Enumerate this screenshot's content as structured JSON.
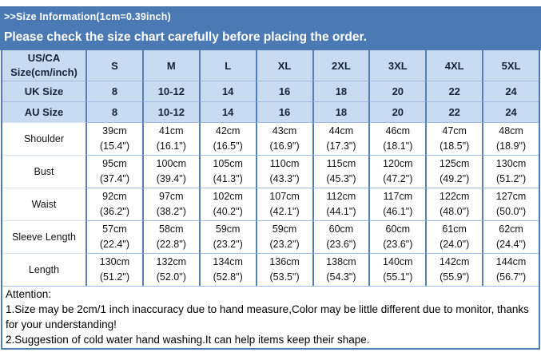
{
  "banner": {
    "title": ">>Size Information(1cm=0.39inch)",
    "subtitle": "Please check the size chart carefully before placing the order."
  },
  "colors": {
    "banner_bg": "#4a79b4",
    "header_cell_bg": "#c9dbf0",
    "label_cell_bg": "#6ba1d9",
    "grid_strong": "#567fb6",
    "grid_light": "#9fbcdf",
    "header_text": "#16233f"
  },
  "table": {
    "corner_line1": "US/CA",
    "corner_line2": "Size(cm/inch)",
    "size_headers": [
      "S",
      "M",
      "L",
      "XL",
      "2XL",
      "3XL",
      "4XL",
      "5XL"
    ],
    "uk_row": {
      "label": "UK Size",
      "values": [
        "8",
        "10-12",
        "14",
        "16",
        "18",
        "20",
        "22",
        "24"
      ]
    },
    "au_row": {
      "label": "AU Size",
      "values": [
        "8",
        "10-12",
        "14",
        "16",
        "18",
        "20",
        "22",
        "24"
      ]
    },
    "measurements": [
      {
        "label": "Shoulder",
        "cm": [
          "39cm",
          "41cm",
          "42cm",
          "43cm",
          "44cm",
          "46cm",
          "47cm",
          "48cm"
        ],
        "inch": [
          "(15.4\")",
          "(16.1\")",
          "(16.5\")",
          "(16.9\")",
          "(17.3\")",
          "(18.1\")",
          "(18.5\")",
          "(18.9\")"
        ]
      },
      {
        "label": "Bust",
        "cm": [
          "95cm",
          "100cm",
          "105cm",
          "110cm",
          "115cm",
          "120cm",
          "125cm",
          "130cm"
        ],
        "inch": [
          "(37.4\")",
          "(39.4\")",
          "(41.3\")",
          "(43.3\")",
          "(45.3\")",
          "(47.2\")",
          "(49.2\")",
          "(51.2\")"
        ]
      },
      {
        "label": "Waist",
        "cm": [
          "92cm",
          "97cm",
          "102cm",
          "107cm",
          "112cm",
          "117cm",
          "122cm",
          "127cm"
        ],
        "inch": [
          "(36.2\")",
          "(38.2\")",
          "(40.2\")",
          "(42.1\")",
          "(44.1\")",
          "(46.1\")",
          "(48.0\")",
          "(50.0\")"
        ]
      },
      {
        "label": "Sleeve Length",
        "cm": [
          "57cm",
          "58cm",
          "59cm",
          "59cm",
          "60cm",
          "60cm",
          "61cm",
          "62cm"
        ],
        "inch": [
          "(22.4\")",
          "(22.8\")",
          "(23.2\")",
          "(23.2\")",
          "(23.6\")",
          "(23.6\")",
          "(24.0\")",
          "(24.4\")"
        ]
      },
      {
        "label": "Length",
        "cm": [
          "130cm",
          "132cm",
          "134cm",
          "136cm",
          "138cm",
          "140cm",
          "142cm",
          "144cm"
        ],
        "inch": [
          "(51.2\")",
          "(52.0\")",
          "(52.8\")",
          "(53.5\")",
          "(54.3\")",
          "(55.1\")",
          "(55.9\")",
          "(56.7\")"
        ]
      }
    ]
  },
  "attention": {
    "heading": "Attention:",
    "lines": [
      "1.Size may be 2cm/1 inch inaccuracy due to hand measure,Color may be little different due to monitor, thanks for your understanding!",
      "2.Suggestion of cold water hand washing.It can help items keep their shape."
    ]
  }
}
